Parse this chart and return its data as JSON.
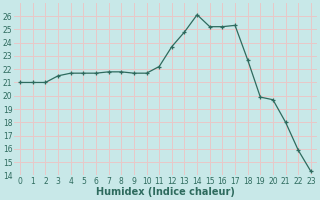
{
  "xlabel": "Humidex (Indice chaleur)",
  "x": [
    0,
    1,
    2,
    3,
    4,
    5,
    6,
    7,
    8,
    9,
    10,
    11,
    12,
    13,
    14,
    15,
    16,
    17,
    18,
    19,
    20,
    21,
    22,
    23
  ],
  "y": [
    21,
    21,
    21,
    21.5,
    21.7,
    21.7,
    21.7,
    21.8,
    21.8,
    21.7,
    21.7,
    22.2,
    23.7,
    24.8,
    26.1,
    25.2,
    25.2,
    25.3,
    22.7,
    19.9,
    19.7,
    18.0,
    15.9,
    14.3
  ],
  "ylim": [
    14,
    27
  ],
  "xlim": [
    -0.5,
    23.5
  ],
  "yticks": [
    14,
    15,
    16,
    17,
    18,
    19,
    20,
    21,
    22,
    23,
    24,
    25,
    26
  ],
  "xticks": [
    0,
    1,
    2,
    3,
    4,
    5,
    6,
    7,
    8,
    9,
    10,
    11,
    12,
    13,
    14,
    15,
    16,
    17,
    18,
    19,
    20,
    21,
    22,
    23
  ],
  "line_color": "#2e6b5e",
  "marker": "+",
  "bg_color": "#c8e8e8",
  "grid_color": "#e8c8c8",
  "label_color": "#2e6b5e",
  "tick_fontsize": 5.5,
  "xlabel_fontsize": 7
}
